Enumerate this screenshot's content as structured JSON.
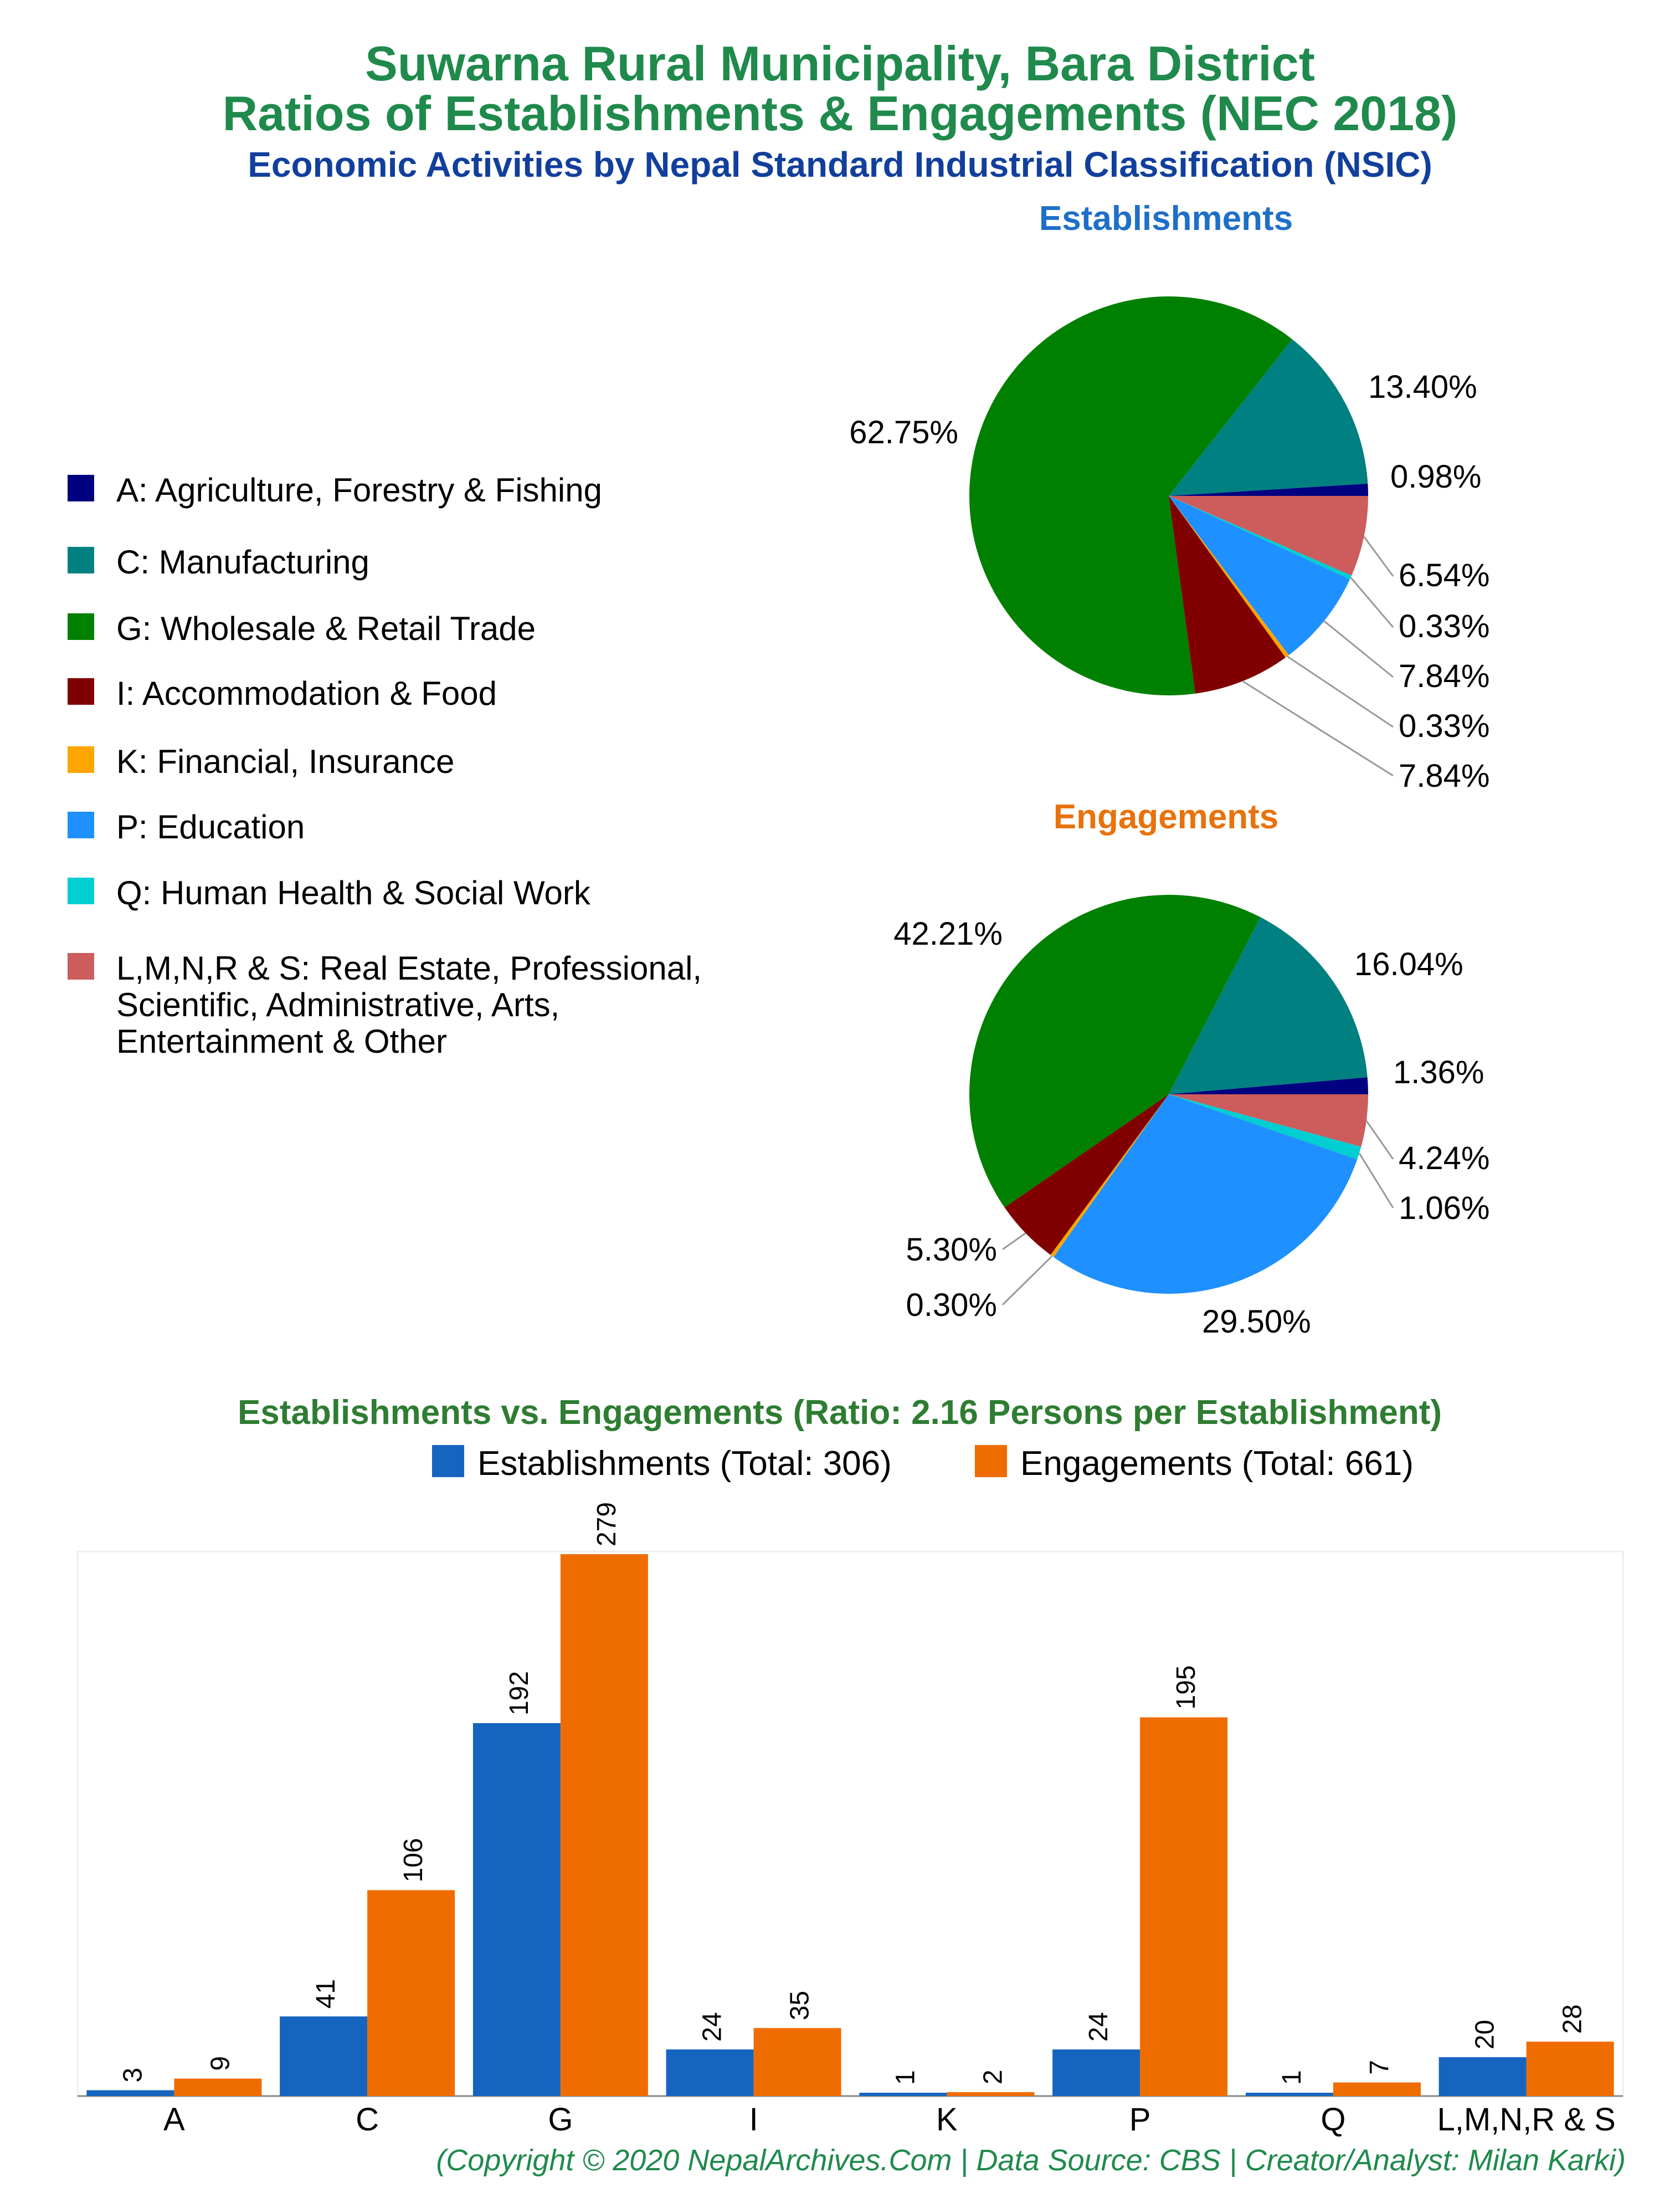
{
  "header": {
    "title_line1": "Suwarna Rural Municipality, Bara District",
    "title_line2": "Ratios of Establishments & Engagements (NEC 2018)",
    "subtitle": "Economic Activities by Nepal Standard Industrial Classification (NSIC)"
  },
  "legend": {
    "items": [
      {
        "code": "A",
        "lines": [
          "A: Agriculture, Forestry & Fishing"
        ],
        "color": "#000080"
      },
      {
        "code": "C",
        "lines": [
          "C: Manufacturing"
        ],
        "color": "#008080"
      },
      {
        "code": "G",
        "lines": [
          "G: Wholesale & Retail Trade"
        ],
        "color": "#008000"
      },
      {
        "code": "I",
        "lines": [
          "I: Accommodation & Food"
        ],
        "color": "#800000"
      },
      {
        "code": "K",
        "lines": [
          "K: Financial, Insurance"
        ],
        "color": "#FFA500"
      },
      {
        "code": "P",
        "lines": [
          "P: Education"
        ],
        "color": "#1E90FF"
      },
      {
        "code": "Q",
        "lines": [
          "Q: Human Health & Social Work"
        ],
        "color": "#00CED1"
      },
      {
        "code": "LMNRS",
        "lines": [
          "L,M,N,R & S: Real Estate, Professional,",
          "Scientific, Administrative, Arts,",
          "Entertainment & Other"
        ],
        "color": "#CD5C5C"
      }
    ]
  },
  "chart_data": [
    {
      "type": "pie",
      "title": "Establishments",
      "title_color": "#1E6FC8",
      "categories": [
        "A",
        "C",
        "G",
        "I",
        "K",
        "P",
        "Q",
        "L,M,N,R & S"
      ],
      "values": [
        0.98,
        13.4,
        62.75,
        7.84,
        0.33,
        7.84,
        0.33,
        6.54
      ],
      "labels": [
        "0.98%",
        "13.40%",
        "62.75%",
        "7.84%",
        "0.33%",
        "7.84%",
        "0.33%",
        "6.54%"
      ]
    },
    {
      "type": "pie",
      "title": "Engagements",
      "title_color": "#E8720C",
      "categories": [
        "A",
        "C",
        "G",
        "I",
        "K",
        "P",
        "Q",
        "L,M,N,R & S"
      ],
      "values": [
        1.36,
        16.04,
        42.21,
        5.3,
        0.3,
        29.5,
        1.06,
        4.24
      ],
      "labels": [
        "1.36%",
        "16.04%",
        "42.21%",
        "5.30%",
        "0.30%",
        "29.50%",
        "1.06%",
        "4.24%"
      ]
    },
    {
      "type": "bar",
      "title": "Establishments vs. Engagements (Ratio: 2.16 Persons per Establishment)",
      "categories": [
        "A",
        "C",
        "G",
        "I",
        "K",
        "P",
        "Q",
        "L,M,N,R & S"
      ],
      "ylim": [
        0,
        279
      ],
      "series": [
        {
          "name": "Establishments (Total: 306)",
          "color": "#1565C0",
          "values": [
            3,
            41,
            192,
            24,
            1,
            24,
            1,
            20
          ]
        },
        {
          "name": "Engagements (Total: 661)",
          "color": "#EF6C00",
          "values": [
            9,
            106,
            279,
            35,
            2,
            195,
            7,
            28
          ]
        }
      ]
    }
  ],
  "footer": {
    "copyright": "(Copyright © 2020 NepalArchives.Com | Data Source: CBS | Creator/Analyst: Milan Karki)"
  }
}
